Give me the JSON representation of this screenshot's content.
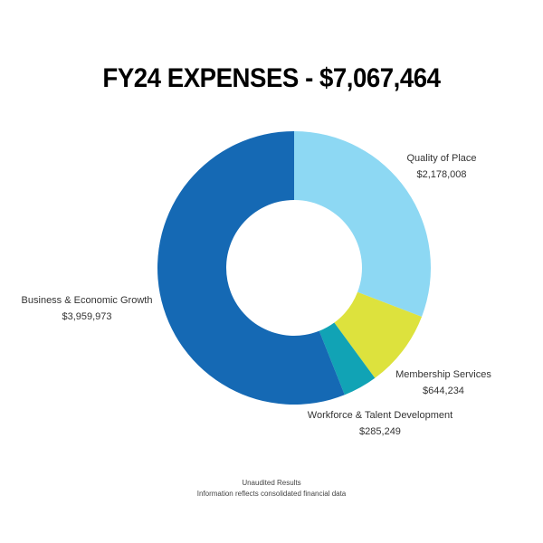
{
  "chart_data": {
    "type": "pie",
    "title": "FY24 EXPENSES - $7,067,464",
    "slices": [
      {
        "name": "Quality of Place",
        "value": 2178008,
        "label": "$2,178,008",
        "color": "#8dd8f3"
      },
      {
        "name": "Membership Services",
        "value": 644234,
        "label": "$644,234",
        "color": "#dde23d"
      },
      {
        "name": "Workforce & Talent Development",
        "value": 285249,
        "label": "$285,249",
        "color": "#11a3b5"
      },
      {
        "name": "Business & Economic Growth",
        "value": 3959973,
        "label": "$3,959,973",
        "color": "#1569b4"
      }
    ],
    "legend": "none"
  },
  "footnote": {
    "line1": "Unaudited Results",
    "line2": "Information reflects consolidated financial data"
  }
}
